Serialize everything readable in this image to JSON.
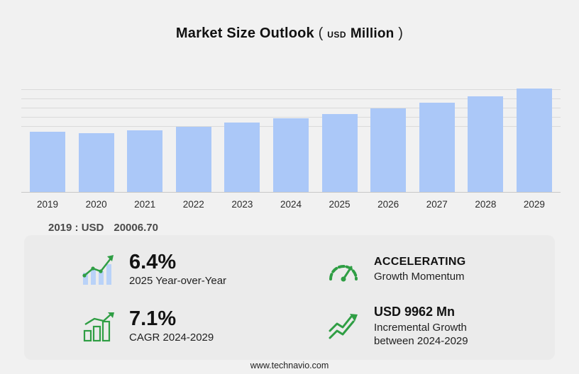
{
  "title": {
    "main": "Market Size Outlook",
    "paren_open": "(",
    "currency": "USD",
    "unit": "Million",
    "paren_close": ")"
  },
  "chart_data": {
    "type": "bar",
    "title": "Market Size Outlook (USD Million)",
    "categories": [
      "2019",
      "2020",
      "2021",
      "2022",
      "2023",
      "2024",
      "2025",
      "2026",
      "2027",
      "2028",
      "2029"
    ],
    "values": [
      20006.7,
      19550,
      20350,
      21700,
      23000,
      24300,
      25855,
      27600,
      29500,
      31700,
      34262
    ],
    "xlabel": "",
    "ylabel": "USD Million",
    "ylim": [
      0,
      35000
    ],
    "grid": "horizontal-top-region",
    "bar_color": "#abc8f8"
  },
  "annotation": {
    "label": "2019 : USD",
    "value": "20006.70"
  },
  "stats": [
    {
      "icon": "yoy-bars-arrow-icon",
      "value": "6.4%",
      "label": "2025 Year-over-Year"
    },
    {
      "icon": "speedometer-icon",
      "value": "ACCELERATING",
      "label": "Growth Momentum"
    },
    {
      "icon": "cagr-chart-icon",
      "value": "7.1%",
      "label": "CAGR 2024-2029"
    },
    {
      "icon": "incremental-growth-icon",
      "value": "USD 9962 Mn",
      "label": "Incremental Growth between 2024-2029"
    }
  ],
  "footer": {
    "url": "www.technavio.com"
  },
  "colors": {
    "accent_green": "#2f9e44",
    "bar_blue": "#abc8f8",
    "background": "#f1f1f1"
  }
}
